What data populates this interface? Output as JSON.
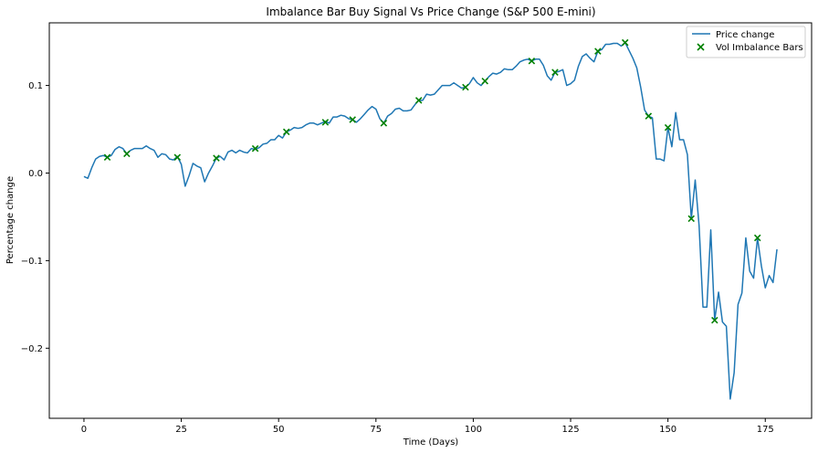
{
  "chart_data": {
    "type": "line",
    "title": "Imbalance Bar Buy Signal Vs Price Change (S&P 500 E-mini)",
    "xlabel": "Time (Days)",
    "ylabel": "Percentage change",
    "xlim": [
      -8.9,
      186.9
    ],
    "ylim": [
      -0.28,
      0.1715
    ],
    "xticks": [
      0,
      25,
      50,
      75,
      100,
      125,
      150,
      175
    ],
    "yticks": [
      -0.2,
      -0.1,
      0.0,
      0.1
    ],
    "ytick_labels": [
      "−0.2",
      "−0.1",
      "0.0",
      "0.1"
    ],
    "grid": false,
    "legend": {
      "position": "top-right"
    },
    "colors": {
      "line": "#1f77b4",
      "marker": "#008000",
      "axes": "#000000"
    },
    "series": [
      {
        "name": "Price change",
        "kind": "line",
        "points": [
          [
            0,
            -0.004
          ],
          [
            1,
            -0.006
          ],
          [
            2,
            0.006
          ],
          [
            3,
            0.016
          ],
          [
            4,
            0.019
          ],
          [
            5,
            0.02
          ],
          [
            6,
            0.018
          ],
          [
            7,
            0.02
          ],
          [
            8,
            0.027
          ],
          [
            9,
            0.03
          ],
          [
            10,
            0.028
          ],
          [
            11,
            0.022
          ],
          [
            12,
            0.026
          ],
          [
            13,
            0.028
          ],
          [
            14,
            0.028
          ],
          [
            15,
            0.028
          ],
          [
            16,
            0.031
          ],
          [
            17,
            0.028
          ],
          [
            18,
            0.026
          ],
          [
            19,
            0.018
          ],
          [
            20,
            0.022
          ],
          [
            21,
            0.021
          ],
          [
            22,
            0.016
          ],
          [
            23,
            0.015
          ],
          [
            24,
            0.019
          ],
          [
            25,
            0.01
          ],
          [
            26,
            -0.015
          ],
          [
            27,
            -0.003
          ],
          [
            28,
            0.011
          ],
          [
            29,
            0.008
          ],
          [
            30,
            0.006
          ],
          [
            31,
            -0.01
          ],
          [
            32,
            0.0
          ],
          [
            33,
            0.008
          ],
          [
            34,
            0.017
          ],
          [
            35,
            0.019
          ],
          [
            36,
            0.015
          ],
          [
            37,
            0.024
          ],
          [
            38,
            0.026
          ],
          [
            39,
            0.023
          ],
          [
            40,
            0.026
          ],
          [
            41,
            0.024
          ],
          [
            42,
            0.023
          ],
          [
            43,
            0.028
          ],
          [
            44,
            0.027
          ],
          [
            45,
            0.029
          ],
          [
            46,
            0.033
          ],
          [
            47,
            0.034
          ],
          [
            48,
            0.038
          ],
          [
            49,
            0.038
          ],
          [
            50,
            0.043
          ],
          [
            51,
            0.04
          ],
          [
            52,
            0.047
          ],
          [
            53,
            0.049
          ],
          [
            54,
            0.052
          ],
          [
            55,
            0.051
          ],
          [
            56,
            0.052
          ],
          [
            57,
            0.055
          ],
          [
            58,
            0.057
          ],
          [
            59,
            0.057
          ],
          [
            60,
            0.055
          ],
          [
            61,
            0.057
          ],
          [
            62,
            0.059
          ],
          [
            63,
            0.057
          ],
          [
            64,
            0.064
          ],
          [
            65,
            0.064
          ],
          [
            66,
            0.066
          ],
          [
            67,
            0.065
          ],
          [
            68,
            0.062
          ],
          [
            69,
            0.061
          ],
          [
            70,
            0.058
          ],
          [
            71,
            0.062
          ],
          [
            72,
            0.067
          ],
          [
            73,
            0.072
          ],
          [
            74,
            0.076
          ],
          [
            75,
            0.073
          ],
          [
            76,
            0.062
          ],
          [
            77,
            0.057
          ],
          [
            78,
            0.065
          ],
          [
            79,
            0.068
          ],
          [
            80,
            0.073
          ],
          [
            81,
            0.074
          ],
          [
            82,
            0.071
          ],
          [
            83,
            0.071
          ],
          [
            84,
            0.072
          ],
          [
            85,
            0.078
          ],
          [
            86,
            0.083
          ],
          [
            87,
            0.083
          ],
          [
            88,
            0.09
          ],
          [
            89,
            0.089
          ],
          [
            90,
            0.09
          ],
          [
            91,
            0.095
          ],
          [
            92,
            0.1
          ],
          [
            93,
            0.1
          ],
          [
            94,
            0.1
          ],
          [
            95,
            0.103
          ],
          [
            96,
            0.1
          ],
          [
            97,
            0.097
          ],
          [
            98,
            0.098
          ],
          [
            99,
            0.102
          ],
          [
            100,
            0.109
          ],
          [
            101,
            0.103
          ],
          [
            102,
            0.1
          ],
          [
            103,
            0.105
          ],
          [
            104,
            0.11
          ],
          [
            105,
            0.114
          ],
          [
            106,
            0.113
          ],
          [
            107,
            0.115
          ],
          [
            108,
            0.119
          ],
          [
            109,
            0.118
          ],
          [
            110,
            0.118
          ],
          [
            111,
            0.122
          ],
          [
            112,
            0.127
          ],
          [
            113,
            0.129
          ],
          [
            114,
            0.13
          ],
          [
            115,
            0.128
          ],
          [
            116,
            0.13
          ],
          [
            117,
            0.13
          ],
          [
            118,
            0.123
          ],
          [
            119,
            0.111
          ],
          [
            120,
            0.106
          ],
          [
            121,
            0.115
          ],
          [
            122,
            0.116
          ],
          [
            123,
            0.118
          ],
          [
            124,
            0.1
          ],
          [
            125,
            0.102
          ],
          [
            126,
            0.106
          ],
          [
            127,
            0.122
          ],
          [
            128,
            0.133
          ],
          [
            129,
            0.136
          ],
          [
            130,
            0.131
          ],
          [
            131,
            0.127
          ],
          [
            132,
            0.139
          ],
          [
            133,
            0.141
          ],
          [
            134,
            0.147
          ],
          [
            135,
            0.147
          ],
          [
            136,
            0.148
          ],
          [
            137,
            0.148
          ],
          [
            138,
            0.145
          ],
          [
            139,
            0.149
          ],
          [
            140,
            0.14
          ],
          [
            141,
            0.131
          ],
          [
            142,
            0.12
          ],
          [
            143,
            0.098
          ],
          [
            144,
            0.072
          ],
          [
            145,
            0.065
          ],
          [
            146,
            0.063
          ],
          [
            147,
            0.016
          ],
          [
            148,
            0.016
          ],
          [
            149,
            0.014
          ],
          [
            150,
            0.052
          ],
          [
            151,
            0.03
          ],
          [
            152,
            0.069
          ],
          [
            153,
            0.038
          ],
          [
            154,
            0.038
          ],
          [
            155,
            0.021
          ],
          [
            156,
            -0.052
          ],
          [
            157,
            -0.008
          ],
          [
            158,
            -0.06
          ],
          [
            159,
            -0.153
          ],
          [
            160,
            -0.153
          ],
          [
            161,
            -0.065
          ],
          [
            162,
            -0.168
          ],
          [
            163,
            -0.136
          ],
          [
            164,
            -0.17
          ],
          [
            165,
            -0.175
          ],
          [
            166,
            -0.258
          ],
          [
            167,
            -0.228
          ],
          [
            168,
            -0.15
          ],
          [
            169,
            -0.137
          ],
          [
            170,
            -0.074
          ],
          [
            171,
            -0.112
          ],
          [
            172,
            -0.12
          ],
          [
            173,
            -0.074
          ],
          [
            174,
            -0.106
          ],
          [
            175,
            -0.131
          ],
          [
            176,
            -0.117
          ],
          [
            177,
            -0.125
          ],
          [
            178,
            -0.087
          ]
        ]
      },
      {
        "name": "Vol Imbalance Bars",
        "kind": "scatter",
        "points": [
          [
            6,
            0.018
          ],
          [
            11,
            0.022
          ],
          [
            24,
            0.018
          ],
          [
            34,
            0.017
          ],
          [
            44,
            0.028
          ],
          [
            52,
            0.047
          ],
          [
            62,
            0.058
          ],
          [
            69,
            0.061
          ],
          [
            77,
            0.057
          ],
          [
            86,
            0.083
          ],
          [
            98,
            0.098
          ],
          [
            103,
            0.105
          ],
          [
            115,
            0.128
          ],
          [
            121,
            0.115
          ],
          [
            132,
            0.139
          ],
          [
            139,
            0.149
          ],
          [
            145,
            0.065
          ],
          [
            150,
            0.052
          ],
          [
            156,
            -0.052
          ],
          [
            162,
            -0.168
          ],
          [
            173,
            -0.074
          ]
        ]
      }
    ]
  }
}
